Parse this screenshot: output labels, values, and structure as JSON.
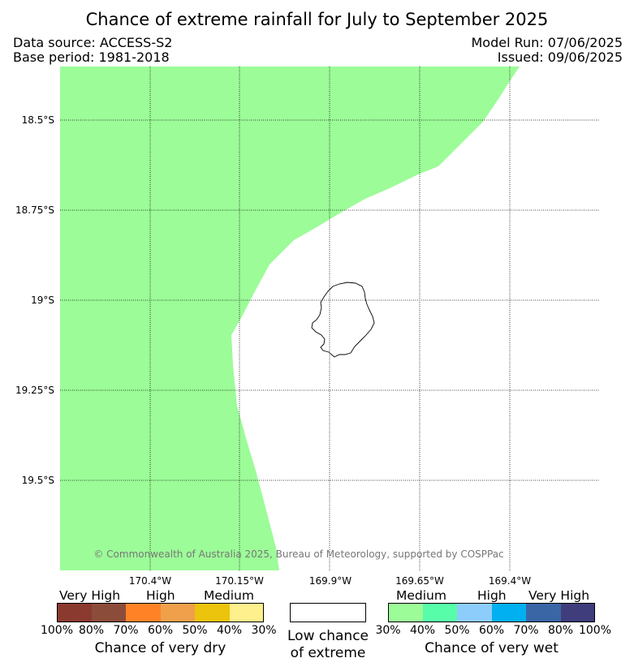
{
  "title": "Chance of extreme rainfall for July to September 2025",
  "header": {
    "data_source": "Data source: ACCESS-S2",
    "base_period": "Base period: 1981-2018",
    "model_run": "Model Run: 07/06/2025",
    "issued": "Issued: 09/06/2025"
  },
  "map": {
    "lat_labels": [
      "18.5°S",
      "18.75°S",
      "19°S",
      "19.25°S",
      "19.5°S"
    ],
    "lon_labels": [
      "170.4°W",
      "170.15°W",
      "169.9°W",
      "169.65°W",
      "169.4°W"
    ],
    "copyright": "© Commonwealth of Australia 2025, Bureau of Meteorology, supported by COSPPac",
    "region_fill_color": "#9cfc98",
    "region_category": "Medium chance of very wet (30%–40%)"
  },
  "legend": {
    "dry": {
      "categories": [
        "Very High",
        "High",
        "Medium"
      ],
      "percents": [
        "100%",
        "80%",
        "70%",
        "60%",
        "50%",
        "40%",
        "30%"
      ],
      "colors": [
        "#8b3a2f",
        "#8c4c3a",
        "#ff8326",
        "#f0a04b",
        "#ecc40d",
        "#fef08d"
      ],
      "caption": "Chance of very dry"
    },
    "low": {
      "caption_line1": "Low chance",
      "caption_line2": "of extreme"
    },
    "wet": {
      "categories": [
        "Medium",
        "High",
        "Very High"
      ],
      "percents": [
        "30%",
        "40%",
        "50%",
        "60%",
        "70%",
        "80%",
        "100%"
      ],
      "colors": [
        "#9cfc98",
        "#58fda9",
        "#8dcdfc",
        "#00b0f0",
        "#3a66a5",
        "#3f3d7c"
      ],
      "caption": "Chance of very wet"
    }
  }
}
